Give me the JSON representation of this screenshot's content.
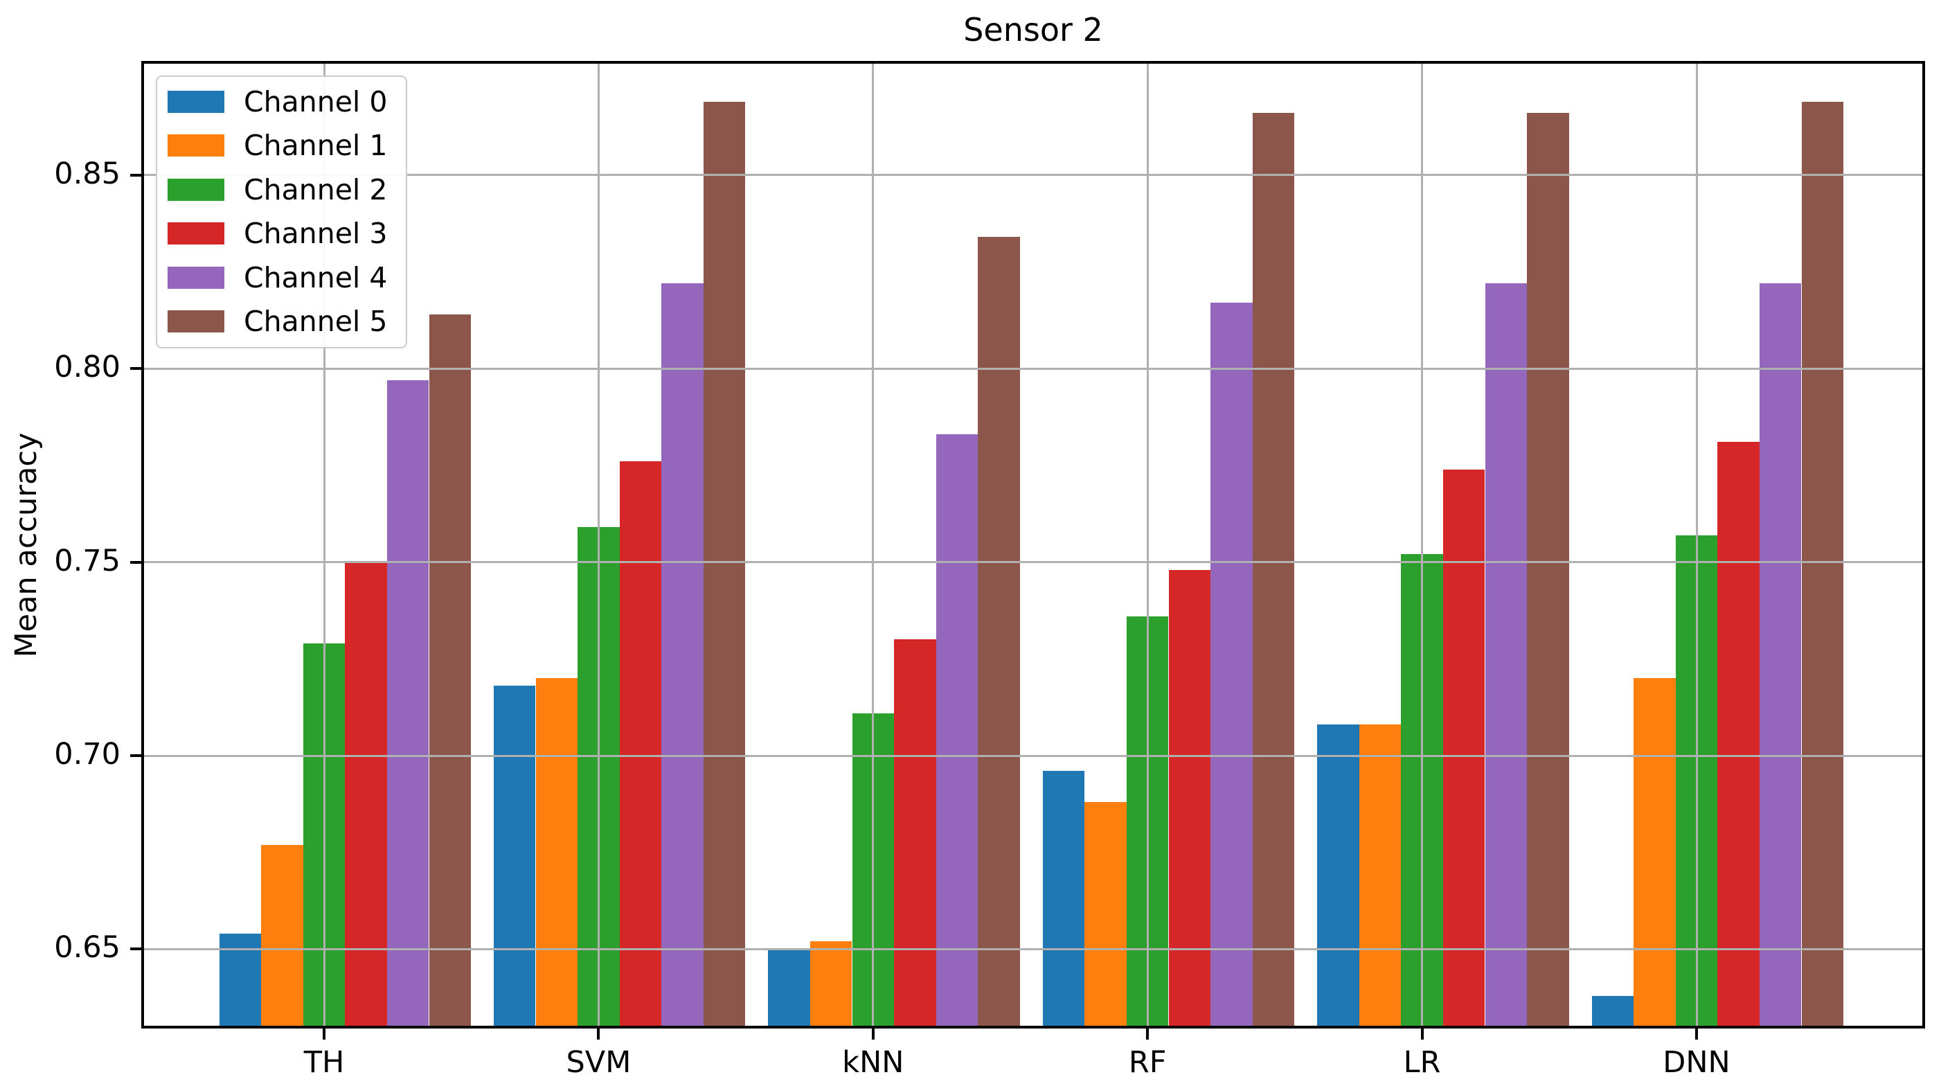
{
  "title": "Sensor 2",
  "ylabel": "Mean accuracy",
  "chart_data": {
    "type": "bar",
    "title": "Sensor 2",
    "xlabel": "",
    "ylabel": "Mean accuracy",
    "categories": [
      "TH",
      "SVM",
      "kNN",
      "RF",
      "LR",
      "DNN"
    ],
    "series": [
      {
        "name": "Channel 0",
        "color": "#1f77b4",
        "values": [
          0.654,
          0.718,
          0.65,
          0.696,
          0.708,
          0.638
        ]
      },
      {
        "name": "Channel 1",
        "color": "#ff7f0e",
        "values": [
          0.677,
          0.72,
          0.652,
          0.688,
          0.708,
          0.72
        ]
      },
      {
        "name": "Channel 2",
        "color": "#2ca02c",
        "values": [
          0.729,
          0.759,
          0.711,
          0.736,
          0.752,
          0.757
        ]
      },
      {
        "name": "Channel 3",
        "color": "#d62728",
        "values": [
          0.75,
          0.776,
          0.73,
          0.748,
          0.774,
          0.781
        ]
      },
      {
        "name": "Channel 4",
        "color": "#9467bd",
        "values": [
          0.797,
          0.822,
          0.783,
          0.817,
          0.822,
          0.822
        ]
      },
      {
        "name": "Channel 5",
        "color": "#8c564b",
        "values": [
          0.814,
          0.869,
          0.834,
          0.866,
          0.866,
          0.869
        ]
      }
    ],
    "y_ticks": [
      0.65,
      0.7,
      0.75,
      0.8,
      0.85
    ],
    "y_tick_labels": [
      "0.65",
      "0.70",
      "0.75",
      "0.80",
      "0.85"
    ],
    "ylim": [
      0.6295,
      0.8795
    ],
    "grid": true,
    "grid_color": "#b0b0b0",
    "legend_position": "upper left",
    "legend_entries": [
      "Channel 0",
      "Channel 1",
      "Channel 2",
      "Channel 3",
      "Channel 4",
      "Channel 5"
    ]
  }
}
